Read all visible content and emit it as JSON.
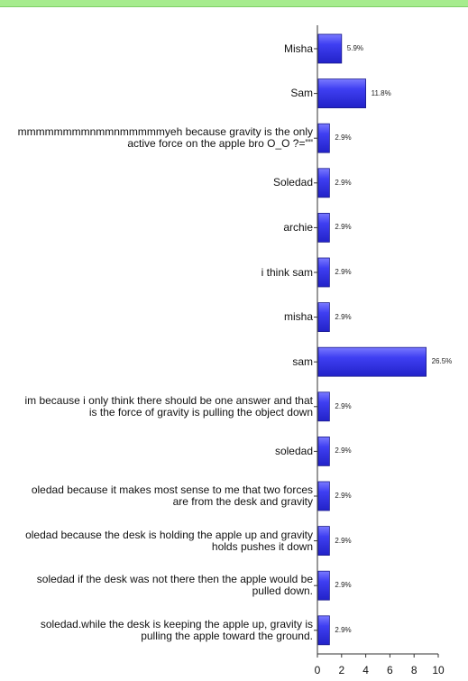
{
  "colors": {
    "banner": "#a6ec8e",
    "bar_fill": "#3f3ff2",
    "bar_border": "#1a1a8c",
    "axis": "#333333"
  },
  "chart_data": {
    "type": "bar",
    "orientation": "horizontal",
    "categories": [
      "Misha",
      "Sam",
      "mmmmmmmmnmmnmmmmmyeh because gravity is the only\nactive force on the apple bro O_O ?=\"\"",
      "Soledad",
      "archie",
      "i think sam",
      "misha",
      "sam",
      "im because i only think there should be one answer and that\nis the force of gravity is pulling the object down",
      "soledad",
      "oledad because it makes most sense to me that two forces\nare from the desk and gravity",
      "oledad because the desk is holding the apple up and gravity\nholds pushes it down",
      "soledad if the desk was not there then the apple would be\npulled down.",
      "soledad.while the desk is keeping the apple up, gravity is\npulling the apple toward the ground."
    ],
    "values": [
      2,
      4,
      1,
      1,
      1,
      1,
      1,
      9,
      1,
      1,
      1,
      1,
      1,
      1
    ],
    "value_labels": [
      "5.9%",
      "11.8%",
      "2.9%",
      "2.9%",
      "2.9%",
      "2.9%",
      "2.9%",
      "26.5%",
      "2.9%",
      "2.9%",
      "2.9%",
      "2.9%",
      "2.9%",
      "2.9%"
    ],
    "xlim": [
      0,
      10
    ],
    "x_ticks": [
      "0",
      "2",
      "4",
      "6",
      "8",
      "10"
    ],
    "grid": false,
    "legend": "none"
  }
}
